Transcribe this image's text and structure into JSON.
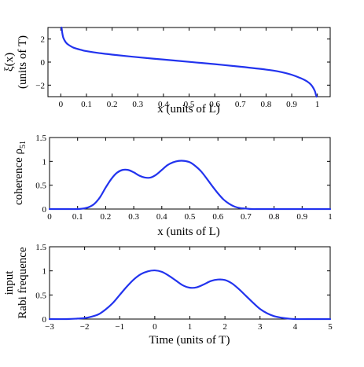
{
  "chart_data": [
    {
      "type": "line",
      "id": "xi",
      "xlabel": "x (units of L)",
      "ylabel": "ξ(x)",
      "ylabel2": "(units of T)",
      "xlim": [
        -0.05,
        1.05
      ],
      "ylim": [
        -3,
        3
      ],
      "xticks": [
        0,
        0.1,
        0.2,
        0.3,
        0.4,
        0.5,
        0.6,
        0.7,
        0.8,
        0.9,
        1
      ],
      "xtick_labels": [
        "0",
        "0.1",
        "0.2",
        "0.3",
        "0.4",
        "0.5",
        "0.6",
        "0.7",
        "0.8",
        "0.9",
        "1"
      ],
      "yticks": [
        -2,
        0,
        2
      ],
      "ytick_labels": [
        "−2",
        "0",
        "2"
      ],
      "color": "#2233ee",
      "x": [
        0.003,
        0.006,
        0.01,
        0.02,
        0.03,
        0.05,
        0.08,
        0.1,
        0.15,
        0.2,
        0.3,
        0.4,
        0.5,
        0.6,
        0.7,
        0.8,
        0.85,
        0.9,
        0.95,
        0.97,
        0.98,
        0.99,
        0.994,
        0.997
      ],
      "y": [
        3.0,
        2.5,
        2.1,
        1.7,
        1.5,
        1.25,
        1.05,
        0.95,
        0.78,
        0.65,
        0.42,
        0.22,
        0.02,
        -0.18,
        -0.4,
        -0.65,
        -0.82,
        -1.1,
        -1.55,
        -1.85,
        -2.1,
        -2.5,
        -2.8,
        -3.0
      ]
    },
    {
      "type": "line",
      "id": "coh",
      "xlabel": "x (units of L)",
      "ylabel": "coherence ρ",
      "ylabel_sub": "51",
      "xlim": [
        0,
        1
      ],
      "ylim": [
        0,
        1.5
      ],
      "xticks": [
        0,
        0.1,
        0.2,
        0.3,
        0.4,
        0.5,
        0.6,
        0.7,
        0.8,
        0.9,
        1
      ],
      "xtick_labels": [
        "0",
        "0.1",
        "0.2",
        "0.3",
        "0.4",
        "0.5",
        "0.6",
        "0.7",
        "0.8",
        "0.9",
        "1"
      ],
      "yticks": [
        0,
        0.5,
        1,
        1.5
      ],
      "ytick_labels": [
        "0",
        "0.5",
        "1",
        "1.5"
      ],
      "color": "#2233ee",
      "x": [
        0,
        0.05,
        0.1,
        0.12,
        0.14,
        0.16,
        0.18,
        0.2,
        0.22,
        0.24,
        0.26,
        0.28,
        0.3,
        0.32,
        0.34,
        0.36,
        0.38,
        0.4,
        0.42,
        0.44,
        0.46,
        0.48,
        0.5,
        0.52,
        0.54,
        0.56,
        0.58,
        0.6,
        0.62,
        0.64,
        0.66,
        0.68,
        0.7,
        0.72,
        0.75,
        0.8,
        0.9,
        1
      ],
      "y": [
        0,
        0,
        0.0,
        0.01,
        0.04,
        0.11,
        0.25,
        0.45,
        0.63,
        0.76,
        0.82,
        0.82,
        0.77,
        0.7,
        0.66,
        0.66,
        0.72,
        0.82,
        0.92,
        0.98,
        1.01,
        1.01,
        0.98,
        0.9,
        0.79,
        0.64,
        0.48,
        0.33,
        0.2,
        0.11,
        0.05,
        0.02,
        0.01,
        0.0,
        0,
        0,
        0,
        0
      ]
    },
    {
      "type": "line",
      "id": "rabi",
      "xlabel": "Time (units of T)",
      "ylabel": "input",
      "ylabel2": "Rabi frequence",
      "xlim": [
        -3,
        5
      ],
      "ylim": [
        0,
        1.5
      ],
      "xticks": [
        -3,
        -2,
        -1,
        0,
        1,
        2,
        3,
        4,
        5
      ],
      "xtick_labels": [
        "−3",
        "−2",
        "−1",
        "0",
        "1",
        "2",
        "3",
        "4",
        "5"
      ],
      "yticks": [
        0,
        0.5,
        1,
        1.5
      ],
      "ytick_labels": [
        "0",
        "0.5",
        "1",
        "1.5"
      ],
      "color": "#2233ee",
      "x": [
        -3,
        -2.5,
        -2.2,
        -2,
        -1.8,
        -1.6,
        -1.4,
        -1.2,
        -1,
        -0.8,
        -0.6,
        -0.4,
        -0.2,
        0,
        0.2,
        0.4,
        0.6,
        0.8,
        1,
        1.2,
        1.4,
        1.6,
        1.8,
        2,
        2.2,
        2.4,
        2.6,
        2.8,
        3,
        3.2,
        3.4,
        3.6,
        3.8,
        4,
        4.5,
        5
      ],
      "y": [
        0,
        0.0,
        0.01,
        0.02,
        0.05,
        0.1,
        0.2,
        0.33,
        0.5,
        0.67,
        0.82,
        0.93,
        0.99,
        1.01,
        0.98,
        0.9,
        0.8,
        0.7,
        0.65,
        0.66,
        0.72,
        0.79,
        0.82,
        0.81,
        0.74,
        0.62,
        0.48,
        0.34,
        0.21,
        0.12,
        0.06,
        0.03,
        0.01,
        0.0,
        0,
        0
      ]
    }
  ]
}
